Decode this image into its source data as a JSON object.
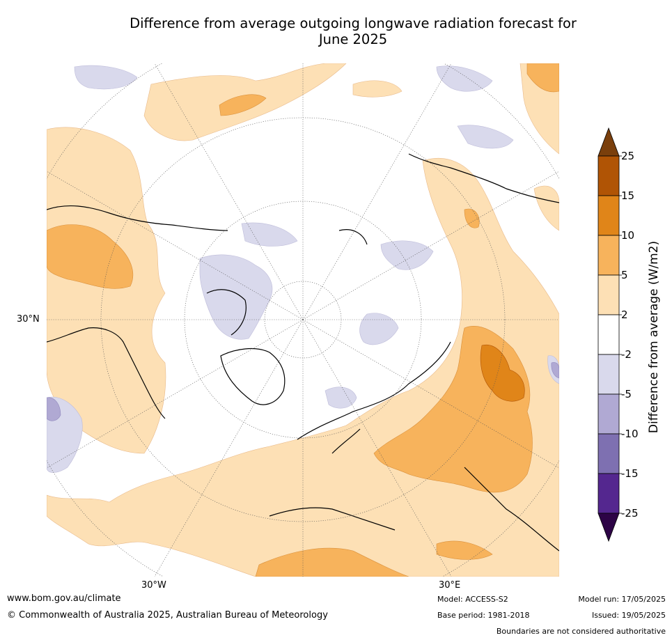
{
  "title_line1": "Difference from average outgoing longwave radiation forecast for",
  "title_line2": "June 2025",
  "axis_labels": {
    "lat": "30°N",
    "lon_left": "30°W",
    "lon_right": "30°E"
  },
  "colorbar": {
    "label": "Difference from average (W/m2)",
    "ticks": [
      "25",
      "15",
      "10",
      "5",
      "2",
      "-2",
      "-5",
      "-10",
      "-15",
      "-25"
    ],
    "colors_top_to_bottom": [
      "#7a3f0c",
      "#b05405",
      "#e08519",
      "#f7b35c",
      "#fde0b5",
      "#ffffff",
      "#d9d9ec",
      "#b0a9d3",
      "#7e70b1",
      "#54278f",
      "#2d0446"
    ]
  },
  "footer": {
    "url": "www.bom.gov.au/climate",
    "copyright": "© Commonwealth of Australia 2025, Australian Bureau of Meteorology",
    "model": "Model: ACCESS-S2",
    "base_period": "Base period: 1981-2018",
    "model_run": "Model run: 17/05/2025",
    "issued": "Issued: 19/05/2025",
    "disclaimer": "Boundaries are not considered authoritative"
  }
}
